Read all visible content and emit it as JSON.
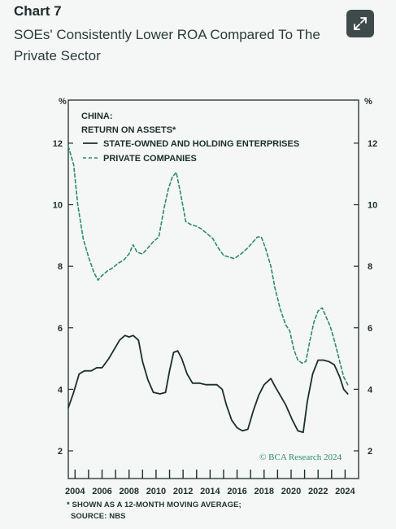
{
  "header": {
    "chart_number": "Chart 7",
    "title": "SOEs' Consistently Lower ROA Compared To The Private Sector"
  },
  "expand_icon": "expand-icon",
  "colors": {
    "soe": "#1c2e2c",
    "private": "#2e8a6a",
    "frame": "#1c2e2c",
    "background": "#f4f7f5"
  },
  "chart_data": {
    "type": "line",
    "legend": {
      "line1": "CHINA:",
      "line2": "RETURN ON ASSETS*"
    },
    "y_unit_left": "%",
    "y_unit_right": "%",
    "ylim": [
      1.1,
      13.4
    ],
    "yticks": [
      2,
      4,
      6,
      8,
      10,
      12
    ],
    "xlim": [
      2003.5,
      2025.0
    ],
    "xticks": [
      2004,
      2006,
      2008,
      2010,
      2012,
      2014,
      2016,
      2018,
      2020,
      2022,
      2024
    ],
    "grid": false,
    "legend_placement": "top-left",
    "series": [
      {
        "name": "STATE-OWNED AND HOLDING ENTERPRISES",
        "style": "solid",
        "x": [
          2003.5,
          2003.9,
          2004.3,
          2004.7,
          2005.2,
          2005.6,
          2006.0,
          2006.5,
          2006.9,
          2007.3,
          2007.7,
          2008.0,
          2008.3,
          2008.7,
          2009.0,
          2009.4,
          2009.8,
          2010.3,
          2010.7,
          2011.0,
          2011.3,
          2011.6,
          2011.9,
          2012.3,
          2012.7,
          2013.2,
          2013.7,
          2014.2,
          2014.5,
          2014.9,
          2015.2,
          2015.6,
          2016.0,
          2016.4,
          2016.8,
          2017.2,
          2017.6,
          2018.0,
          2018.5,
          2018.8,
          2019.2,
          2019.6,
          2020.1,
          2020.5,
          2020.9,
          2021.2,
          2021.6,
          2022.0,
          2022.4,
          2022.8,
          2023.2,
          2023.6,
          2023.9,
          2024.2
        ],
        "y": [
          3.4,
          3.9,
          4.5,
          4.6,
          4.6,
          4.7,
          4.7,
          5.0,
          5.3,
          5.6,
          5.75,
          5.7,
          5.75,
          5.6,
          4.9,
          4.3,
          3.9,
          3.85,
          3.9,
          4.6,
          5.2,
          5.25,
          5.0,
          4.5,
          4.2,
          4.2,
          4.15,
          4.15,
          4.15,
          4.0,
          3.5,
          3.0,
          2.75,
          2.65,
          2.7,
          3.3,
          3.8,
          4.15,
          4.35,
          4.1,
          3.8,
          3.5,
          3.0,
          2.65,
          2.6,
          3.6,
          4.5,
          4.95,
          4.95,
          4.9,
          4.8,
          4.4,
          4.0,
          3.85
        ]
      },
      {
        "name": "PRIVATE COMPANIES",
        "style": "dashed",
        "x": [
          2003.5,
          2003.9,
          2004.2,
          2004.6,
          2005.0,
          2005.4,
          2005.7,
          2006.0,
          2006.4,
          2006.8,
          2007.2,
          2007.6,
          2008.0,
          2008.3,
          2008.6,
          2009.0,
          2009.4,
          2009.8,
          2010.2,
          2010.6,
          2010.9,
          2011.2,
          2011.5,
          2011.8,
          2012.2,
          2012.6,
          2013.0,
          2013.4,
          2013.8,
          2014.2,
          2014.6,
          2015.0,
          2015.4,
          2015.8,
          2016.3,
          2016.8,
          2017.2,
          2017.5,
          2017.8,
          2018.1,
          2018.5,
          2018.8,
          2019.2,
          2019.6,
          2019.9,
          2020.2,
          2020.5,
          2020.8,
          2021.1,
          2021.4,
          2021.7,
          2022.0,
          2022.3,
          2022.6,
          2022.9,
          2023.2,
          2023.6,
          2023.9,
          2024.2
        ],
        "y": [
          11.9,
          11.3,
          10.0,
          8.9,
          8.3,
          7.8,
          7.55,
          7.7,
          7.85,
          7.95,
          8.1,
          8.2,
          8.4,
          8.7,
          8.45,
          8.4,
          8.6,
          8.8,
          8.95,
          9.9,
          10.5,
          10.9,
          11.05,
          10.4,
          9.45,
          9.35,
          9.3,
          9.2,
          9.05,
          8.9,
          8.6,
          8.35,
          8.3,
          8.25,
          8.4,
          8.6,
          8.8,
          8.95,
          8.95,
          8.6,
          8.0,
          7.3,
          6.6,
          6.1,
          5.9,
          5.3,
          4.95,
          4.85,
          4.9,
          5.6,
          6.2,
          6.55,
          6.65,
          6.35,
          6.05,
          5.6,
          4.9,
          4.4,
          4.15
        ]
      }
    ],
    "watermark": "© BCA Research 2024",
    "footnote": "* SHOWN AS A 12-MONTH MOVING AVERAGE;",
    "source": "SOURCE: NBS"
  }
}
